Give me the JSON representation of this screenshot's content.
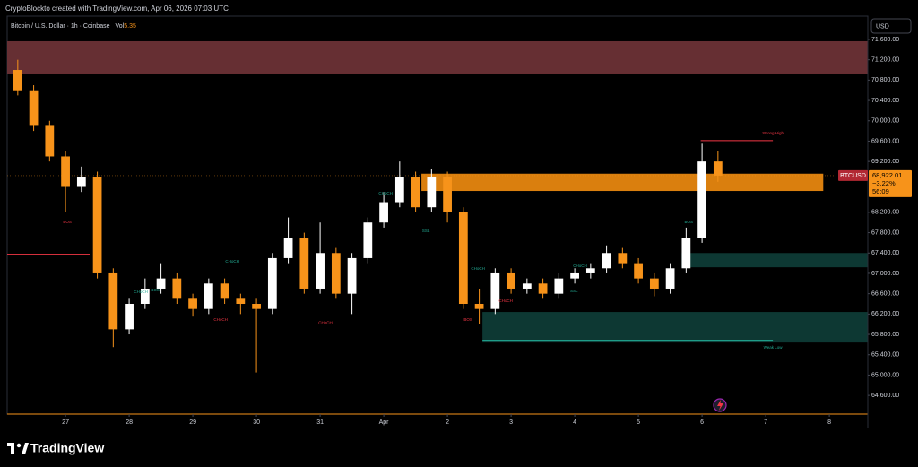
{
  "header": "CryptoBlockto created with TradingView.com, Apr 06, 2026 07:03 UTC",
  "chart_data": {
    "type": "candlestick",
    "title": "Bitcoin / U.S. Dollar · 1h · Coinbase",
    "volume_label": "Vol",
    "volume_value": 5.35,
    "currency": "USD",
    "up_color": "#ffffff",
    "down_color": "#f7931a",
    "x": [
      -18,
      -12,
      -6,
      0,
      6,
      12,
      18,
      24,
      30,
      36,
      42,
      48,
      54,
      60,
      66,
      72,
      78,
      84,
      90,
      96,
      102,
      108,
      114,
      120,
      126,
      132,
      138,
      144,
      150,
      156,
      162,
      168,
      174,
      180,
      186,
      192,
      198,
      204,
      210,
      216,
      222,
      228,
      234,
      240,
      246
    ],
    "open": [
      71000,
      70600,
      69900,
      69300,
      68700,
      68900,
      67000,
      65900,
      66400,
      66700,
      66900,
      66500,
      66300,
      66800,
      66500,
      66400,
      66300,
      67300,
      67700,
      66700,
      67400,
      66600,
      67300,
      68000,
      68400,
      68900,
      68300,
      68900,
      68200,
      66400,
      66300,
      67000,
      66700,
      66800,
      66600,
      66900,
      67000,
      67100,
      67400,
      67200,
      66900,
      66700,
      67100,
      67700,
      69200
    ],
    "high": [
      71200,
      70700,
      70000,
      69400,
      69100,
      69000,
      67100,
      66500,
      66900,
      67200,
      67000,
      66600,
      66900,
      66900,
      66600,
      66500,
      67400,
      68100,
      67800,
      68000,
      67500,
      67400,
      68100,
      68600,
      69200,
      69000,
      69050,
      69000,
      68300,
      66700,
      67100,
      67100,
      66900,
      66900,
      67000,
      67100,
      67200,
      67550,
      67500,
      67300,
      67000,
      67200,
      67900,
      69550,
      69400
    ],
    "low": [
      70500,
      69800,
      69200,
      68200,
      68600,
      66900,
      65550,
      65800,
      66300,
      66600,
      66400,
      66150,
      66200,
      66400,
      66200,
      65050,
      66200,
      67200,
      66600,
      66600,
      66500,
      66200,
      67200,
      67900,
      68300,
      68200,
      68200,
      68000,
      66300,
      66000,
      66200,
      66600,
      66600,
      66500,
      66500,
      66800,
      66900,
      67000,
      67100,
      66800,
      66550,
      66600,
      67000,
      67600,
      68800
    ],
    "close": [
      70600,
      69900,
      69300,
      68700,
      68900,
      67000,
      65900,
      66400,
      66700,
      66900,
      66500,
      66300,
      66800,
      66500,
      66400,
      66300,
      67300,
      67700,
      66700,
      67400,
      66600,
      67300,
      68000,
      68400,
      68900,
      68300,
      68900,
      68200,
      66400,
      66300,
      67000,
      66700,
      66800,
      66600,
      66900,
      67000,
      67100,
      67400,
      67200,
      66900,
      66700,
      67100,
      67700,
      69200,
      68922.01
    ],
    "xlim": [
      -22,
      302.5
    ],
    "xticks": [
      {
        "value": 0,
        "label": "27"
      },
      {
        "value": 24,
        "label": "28"
      },
      {
        "value": 48,
        "label": "29"
      },
      {
        "value": 72,
        "label": "30"
      },
      {
        "value": 96,
        "label": "31"
      },
      {
        "value": 120,
        "label": "Apr"
      },
      {
        "value": 144,
        "label": "2"
      },
      {
        "value": 168,
        "label": "3"
      },
      {
        "value": 192,
        "label": "4"
      },
      {
        "value": 216,
        "label": "5"
      },
      {
        "value": 240,
        "label": "6"
      },
      {
        "value": 264,
        "label": "7"
      },
      {
        "value": 288,
        "label": "8"
      }
    ],
    "ylim": [
      64232,
      72058
    ],
    "yticks": [
      {
        "value": 71600,
        "label": "71,600.00"
      },
      {
        "value": 71200,
        "label": "71,200.00"
      },
      {
        "value": 70800,
        "label": "70,800.00"
      },
      {
        "value": 70400,
        "label": "70,400.00"
      },
      {
        "value": 70000,
        "label": "70,000.00"
      },
      {
        "value": 69600,
        "label": "69,600.00"
      },
      {
        "value": 69200,
        "label": "69,200.00"
      },
      {
        "value": 68200,
        "label": "68,200.00"
      },
      {
        "value": 67800,
        "label": "67,800.00"
      },
      {
        "value": 67400,
        "label": "67,400.00"
      },
      {
        "value": 67000,
        "label": "67,000.00"
      },
      {
        "value": 66600,
        "label": "66,600.00"
      },
      {
        "value": 66200,
        "label": "66,200.00"
      },
      {
        "value": 65800,
        "label": "65,800.00"
      },
      {
        "value": 65400,
        "label": "65,400.00"
      },
      {
        "value": 65000,
        "label": "65,000.00"
      },
      {
        "value": 64600,
        "label": "64,600.00"
      }
    ],
    "zones": [
      {
        "x": [
          -22,
          302.5
        ],
        "y": [
          70930,
          71565
        ],
        "color": "#6b3236"
      },
      {
        "x": [
          134.2,
          285.7
        ],
        "y": [
          68620,
          68960
        ],
        "color": "#e6860f"
      },
      {
        "x": [
          232.3,
          302.5
        ],
        "y": [
          67120,
          67400
        ],
        "color": "#0e3b36"
      },
      {
        "x": [
          157.2,
          302.5
        ],
        "y": [
          65640,
          66240
        ],
        "color": "#0e3b36"
      }
    ],
    "levels": [
      {
        "x": [
          -22,
          9.1
        ],
        "value": 67375,
        "color": "#f23645"
      },
      {
        "x": [
          239.5,
          266.7
        ],
        "value": 69610,
        "color": "#f23645"
      },
      {
        "x": [
          157.2,
          266.7
        ],
        "value": 65685,
        "color": "#22ab94"
      }
    ],
    "annotations": [
      {
        "text": "BOS",
        "x": 0.7,
        "y": 68008,
        "color": "#f23645"
      },
      {
        "text": "CHoCH",
        "x": 28.4,
        "y": 66635,
        "color": "#22ab94"
      },
      {
        "text": "BOS",
        "x": 33.8,
        "y": 66670,
        "color": "#22ab94"
      },
      {
        "text": "CHoCH",
        "x": 58.5,
        "y": 66090,
        "color": "#f23645"
      },
      {
        "text": "CHoCH",
        "x": 62.9,
        "y": 67234,
        "color": "#22ab94"
      },
      {
        "text": "CHoCH",
        "x": 98,
        "y": 66020,
        "color": "#f23645"
      },
      {
        "text": "CHoCH",
        "x": 120.7,
        "y": 68572,
        "color": "#22ab94"
      },
      {
        "text": "SSL",
        "x": 135.9,
        "y": 67833,
        "color": "#22ab94"
      },
      {
        "text": "BOS",
        "x": 151.8,
        "y": 66090,
        "color": "#f23645"
      },
      {
        "text": "CHoCH",
        "x": 155.5,
        "y": 67093,
        "color": "#22ab94"
      },
      {
        "text": "CHoCH",
        "x": 166,
        "y": 66460,
        "color": "#f23645"
      },
      {
        "text": "SSL",
        "x": 191.7,
        "y": 66650,
        "color": "#22ab94"
      },
      {
        "text": "CHoCH",
        "x": 194,
        "y": 67146,
        "color": "#22ab94"
      },
      {
        "text": "BOS",
        "x": 235,
        "y": 68008,
        "color": "#22ab94"
      },
      {
        "text": "Strong High",
        "x": 266.7,
        "y": 69751,
        "color": "#f23645"
      },
      {
        "text": "Weak Low",
        "x": 266.7,
        "y": 65544,
        "color": "#22ab94"
      }
    ],
    "last_price": {
      "symbol": "BTCUSD",
      "value": 68922.01,
      "label": "68,922.01",
      "change": "−3.22%",
      "countdown": "56:09"
    }
  },
  "footer": {
    "brand": "TradingView"
  }
}
